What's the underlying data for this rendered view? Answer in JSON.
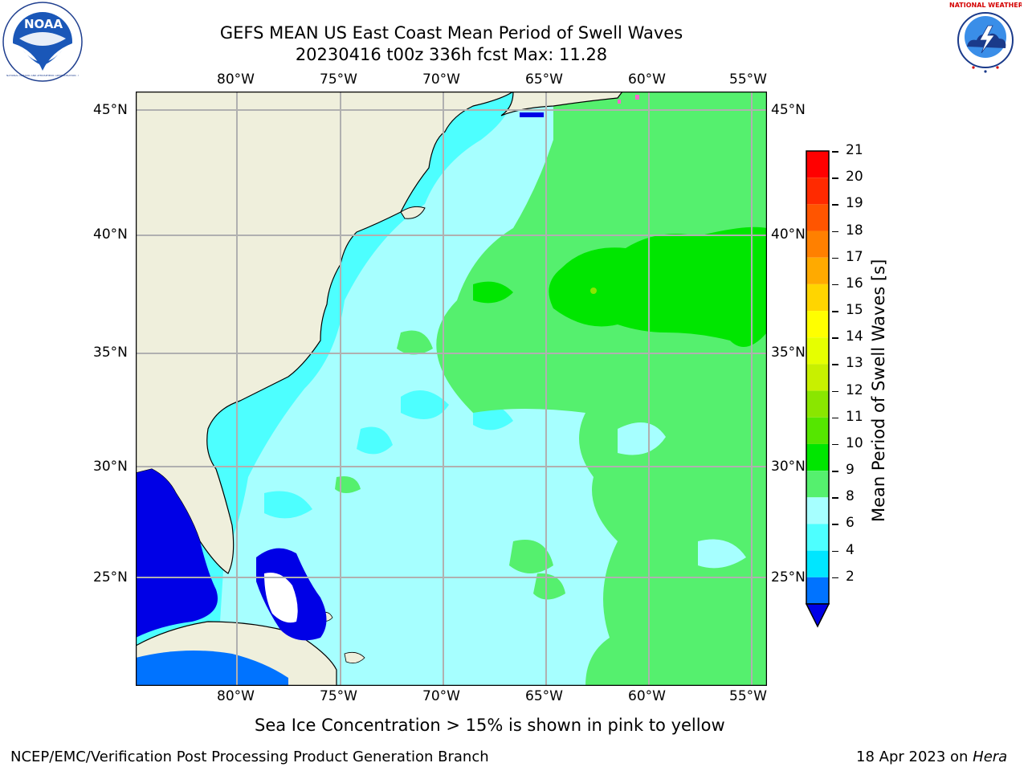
{
  "header": {
    "title_line1": "GEFS MEAN US East Coast Mean Period of Swell Waves",
    "title_line2": "20230416 t00z 336h fcst   Max: 11.28"
  },
  "logos": {
    "left": {
      "text": "NOAA",
      "ring_text": "NATIONAL OCEANIC AND ATMOSPHERIC ADMINISTRATION · U.S. DEPARTMENT OF COMMERCE"
    },
    "right": {
      "ring_text": "NATIONAL WEATHER SERVICE"
    }
  },
  "map": {
    "lon_labels": [
      "80°W",
      "75°W",
      "70°W",
      "65°W",
      "60°W",
      "55°W"
    ],
    "lat_labels": [
      "45°N",
      "40°N",
      "35°N",
      "30°N",
      "25°N"
    ]
  },
  "colorbar": {
    "label": "Mean Period of Swell Waves [s]",
    "ticks": [
      "21",
      "20",
      "19",
      "18",
      "17",
      "16",
      "15",
      "14",
      "13",
      "12",
      "11",
      "10",
      "9",
      "8",
      "6",
      "4",
      "2"
    ],
    "colors": [
      "#ff0000",
      "#ff2a00",
      "#ff5500",
      "#ff8000",
      "#ffaa00",
      "#ffd500",
      "#ffff00",
      "#e6ff00",
      "#c8f000",
      "#8ae600",
      "#55e600",
      "#00e600",
      "#55f06e",
      "#a6ffff",
      "#4dffff",
      "#00e6ff",
      "#0073ff"
    ],
    "under_color": "#0000e6"
  },
  "footer": {
    "note": "Sea Ice Concentration > 15% is shown in pink to yellow",
    "left": "NCEP/EMC/Verification Post Processing Product Generation Branch",
    "date": "18 Apr 2023 on ",
    "machine": "Hera"
  }
}
